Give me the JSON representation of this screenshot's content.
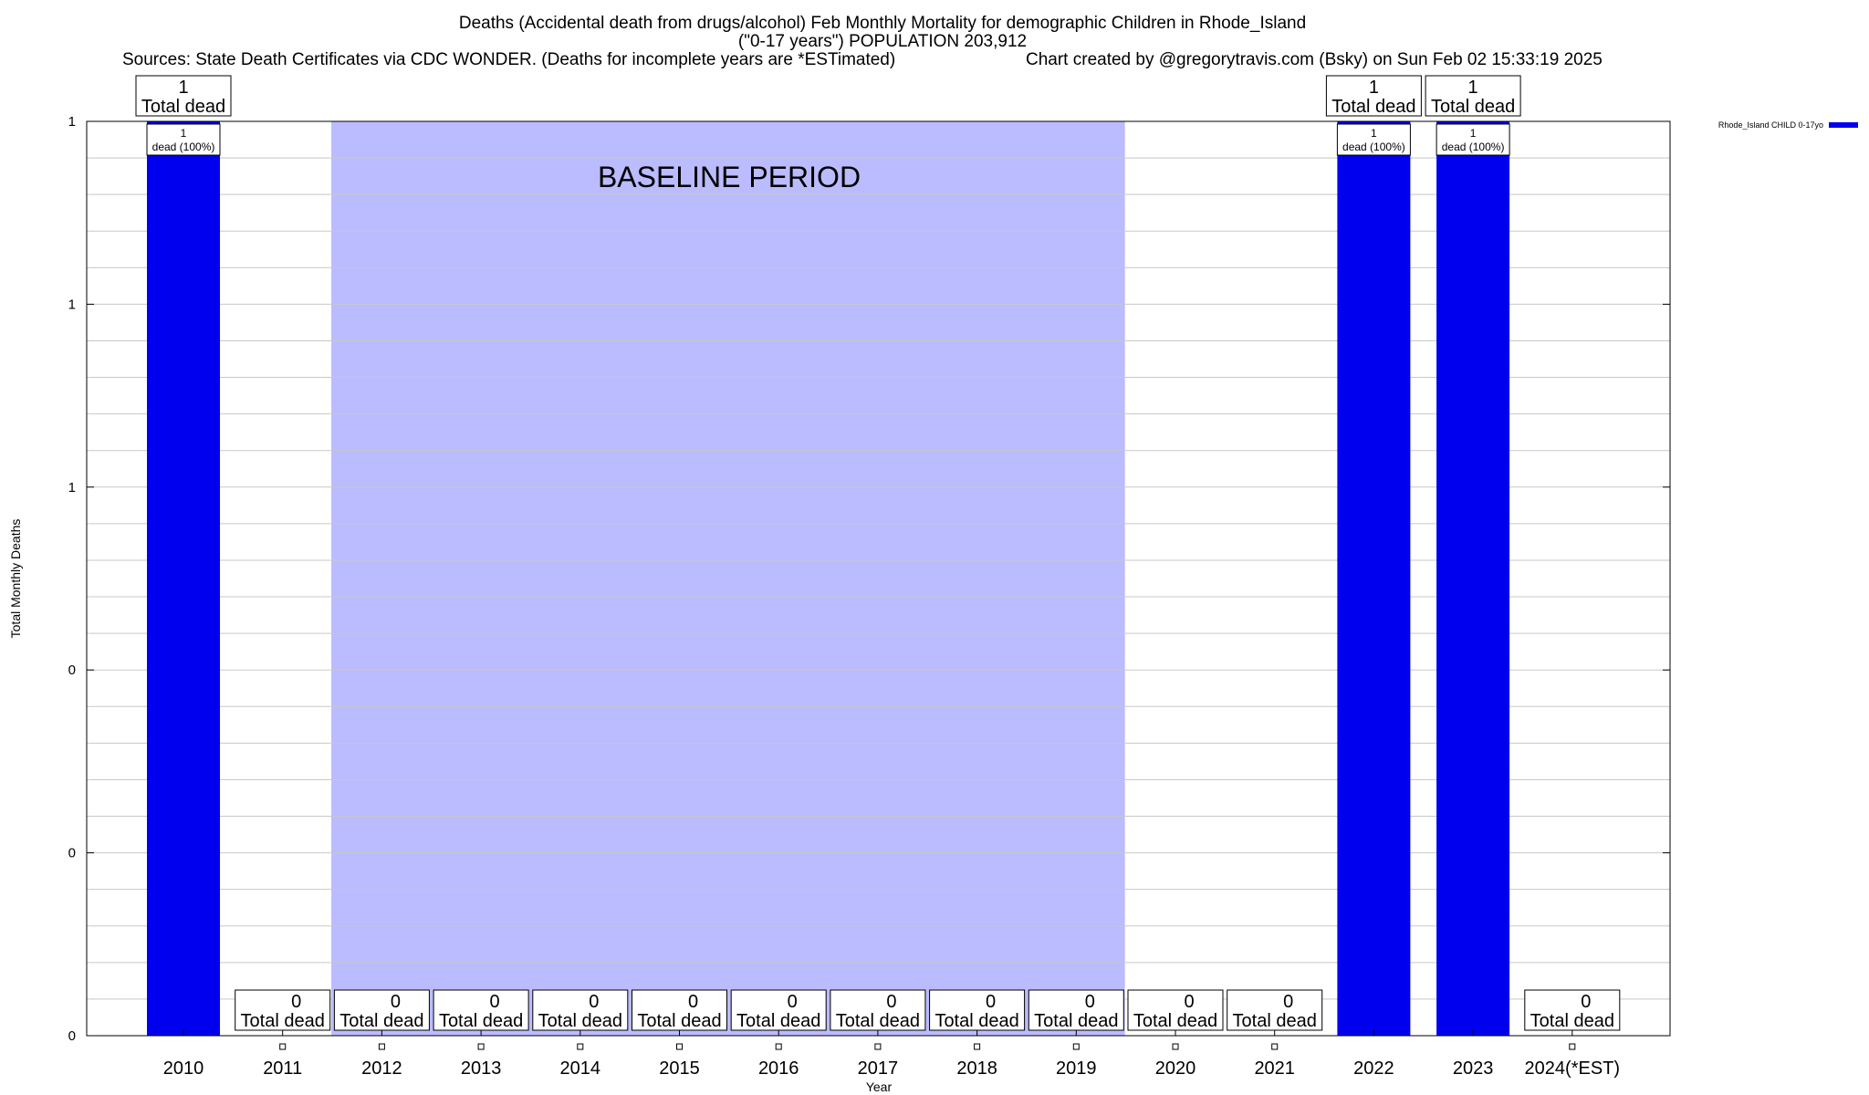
{
  "header": {
    "title_line1": "Deaths (Accidental death from drugs/alcohol) Feb Monthly Mortality for demographic Children in Rhode_Island",
    "title_line2": "(\"0-17 years\") POPULATION 203,912",
    "sources": "Sources: State Death Certificates via CDC WONDER. (Deaths for incomplete years are *ESTimated)",
    "credit": "Chart created by @gregorytravis.com (Bsky) on Sun Feb 02 15:33:19 2025"
  },
  "chart_data": {
    "type": "bar",
    "categories": [
      "2010",
      "2011",
      "2012",
      "2013",
      "2014",
      "2015",
      "2016",
      "2017",
      "2018",
      "2019",
      "2020",
      "2021",
      "2022",
      "2023",
      "2024(*EST)"
    ],
    "series": [
      {
        "name": "Rhode_Island CHILD 0-17yo",
        "color": "#0000ee",
        "values": [
          1,
          0,
          0,
          0,
          0,
          0,
          0,
          0,
          0,
          0,
          0,
          0,
          1,
          1,
          0
        ]
      }
    ],
    "total_labels": [
      "1",
      "0",
      "0",
      "0",
      "0",
      "0",
      "0",
      "0",
      "0",
      "0",
      "0",
      "0",
      "1",
      "1",
      "0"
    ],
    "total_suffix": "Total dead",
    "inner_labels": [
      {
        "category": "2010",
        "count": "1",
        "text": "dead (100%)"
      },
      {
        "category": "2022",
        "count": "1",
        "text": "dead (100%)"
      },
      {
        "category": "2023",
        "count": "1",
        "text": "dead (100%)"
      }
    ],
    "xlabel": "Year",
    "ylabel": "Total Monthly Deaths",
    "ylim": [
      0,
      1
    ],
    "ytick_values": [
      0,
      0.2,
      0.4,
      0.6,
      0.8,
      1
    ],
    "ytick_labels": [
      "0",
      "0",
      "0",
      "1",
      "1",
      "1"
    ],
    "minor_grid_per_major": 5,
    "grid": true,
    "baseline_period": {
      "label": "BASELINE PERIOD",
      "start": "2012",
      "end": "2019",
      "color": "#bbbbff"
    },
    "legend": {
      "position": "top-right",
      "label": "Rhode_Island CHILD 0-17yo"
    }
  }
}
